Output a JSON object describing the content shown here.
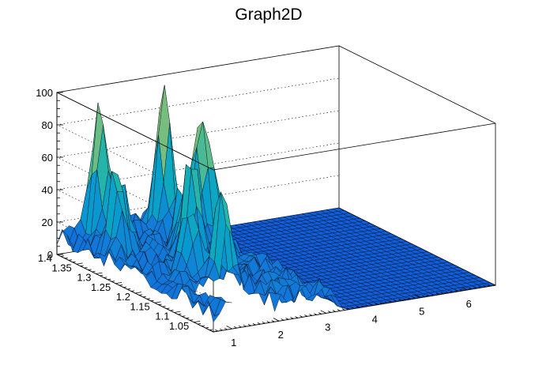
{
  "chart_data": {
    "type": "surface",
    "title": "Graph2D",
    "xlabel": "",
    "ylabel": "",
    "zlabel": "",
    "xlim": [
      0.6,
      6.6
    ],
    "ylim": [
      1.0,
      1.4
    ],
    "zlim": [
      0,
      100
    ],
    "x_ticks": [
      "1",
      "2",
      "3",
      "4",
      "5",
      "6"
    ],
    "y_ticks": [
      "1.05",
      "1.1",
      "1.15",
      "1.2",
      "1.25",
      "1.3",
      "1.35",
      "1.4"
    ],
    "z_ticks": [
      "0",
      "20",
      "40",
      "60",
      "80",
      "100"
    ],
    "grid": true,
    "colormap": "viridis",
    "peaks": [
      {
        "x": 1.95,
        "y": 1.22,
        "z": 72
      },
      {
        "x": 1.7,
        "y": 1.11,
        "z": 63
      },
      {
        "x": 1.45,
        "y": 1.16,
        "z": 45
      },
      {
        "x": 2.55,
        "y": 1.36,
        "z": 92
      },
      {
        "x": 2.75,
        "y": 1.3,
        "z": 62
      },
      {
        "x": 2.95,
        "y": 1.29,
        "z": 48
      },
      {
        "x": 1.25,
        "y": 1.37,
        "z": 82
      },
      {
        "x": 1.05,
        "y": 1.3,
        "z": 52
      },
      {
        "x": 1.35,
        "y": 1.33,
        "z": 40
      },
      {
        "x": 2.2,
        "y": 1.27,
        "z": 38
      },
      {
        "x": 3.2,
        "y": 1.3,
        "z": 22
      }
    ],
    "noise_region": {
      "x": [
        0.6,
        3.4
      ],
      "y": [
        1.0,
        1.4
      ],
      "amplitude": 14
    },
    "flat_region": {
      "x": [
        3.4,
        6.6
      ],
      "z": 0
    },
    "hole": {
      "x": [
        1.1,
        1.9
      ],
      "y": [
        1.0,
        1.08
      ]
    }
  }
}
